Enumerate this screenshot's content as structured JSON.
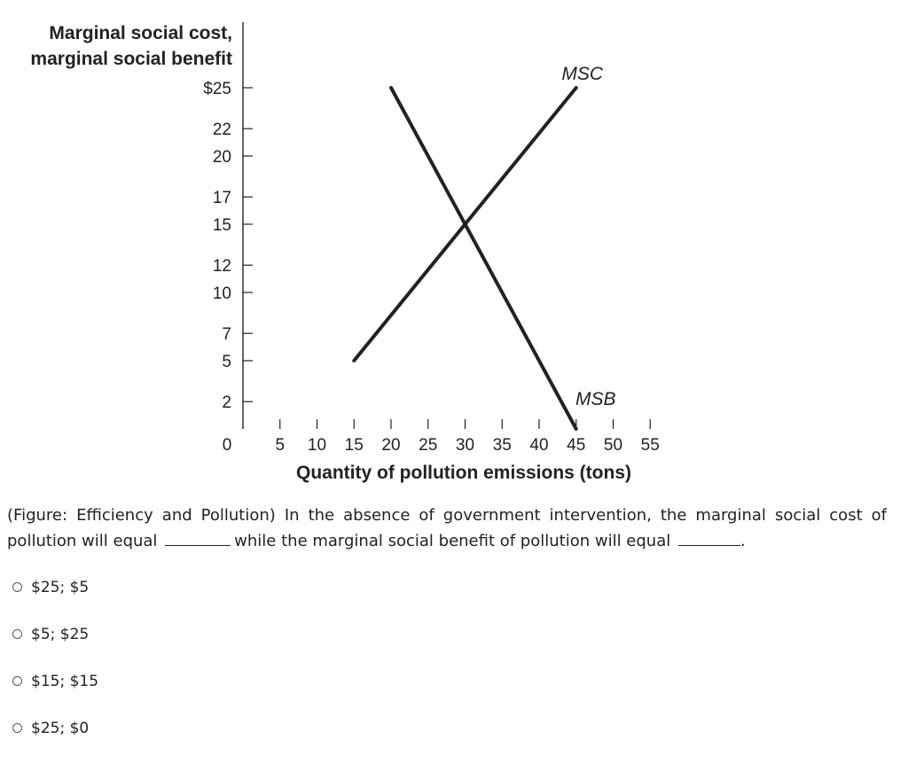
{
  "chart_data": {
    "type": "line",
    "title": "",
    "ylabel_lines": [
      "Marginal social cost,",
      "marginal social benefit"
    ],
    "xlabel": "Quantity of pollution emissions (tons)",
    "y_ticks": [
      {
        "value": 25,
        "label": "$25"
      },
      {
        "value": 22,
        "label": "22"
      },
      {
        "value": 20,
        "label": "20"
      },
      {
        "value": 17,
        "label": "17"
      },
      {
        "value": 15,
        "label": "15"
      },
      {
        "value": 12,
        "label": "12"
      },
      {
        "value": 10,
        "label": "10"
      },
      {
        "value": 7,
        "label": "7"
      },
      {
        "value": 5,
        "label": "5"
      },
      {
        "value": 2,
        "label": "2"
      }
    ],
    "x_ticks": [
      {
        "value": 5,
        "label": "5"
      },
      {
        "value": 10,
        "label": "10"
      },
      {
        "value": 15,
        "label": "15"
      },
      {
        "value": 20,
        "label": "20"
      },
      {
        "value": 25,
        "label": "25"
      },
      {
        "value": 30,
        "label": "30"
      },
      {
        "value": 35,
        "label": "35"
      },
      {
        "value": 40,
        "label": "40"
      },
      {
        "value": 45,
        "label": "45"
      },
      {
        "value": 50,
        "label": "50"
      },
      {
        "value": 55,
        "label": "55"
      }
    ],
    "origin_label": "0",
    "xlim": [
      0,
      55
    ],
    "ylim": [
      0,
      25
    ],
    "grid": false,
    "series": [
      {
        "name": "MSC",
        "points": [
          {
            "x": 15,
            "y": 5
          },
          {
            "x": 45,
            "y": 25
          }
        ]
      },
      {
        "name": "MSB",
        "points": [
          {
            "x": 20,
            "y": 25
          },
          {
            "x": 45,
            "y": 0
          }
        ]
      }
    ]
  },
  "question": {
    "part1": "(Figure: Efficiency and Pollution) In the absence of government intervention, the marginal social cost of pollution will equal",
    "part2": "while the marginal social benefit of pollution will equal",
    "part3": "."
  },
  "options": [
    {
      "label": "$25; $5"
    },
    {
      "label": "$5; $25"
    },
    {
      "label": "$15; $15"
    },
    {
      "label": "$25; $0"
    }
  ]
}
